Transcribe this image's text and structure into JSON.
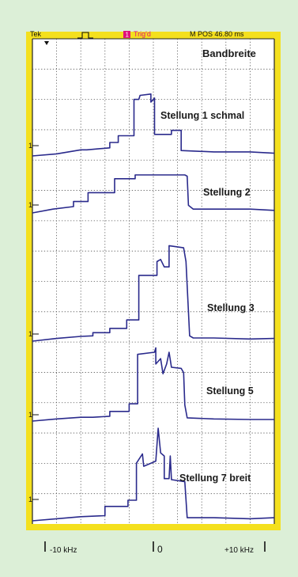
{
  "topbar": {
    "brand": "Tek",
    "trigger_indicator": "1",
    "trigger_label": "Trig'd",
    "position_readout": "M POS 46.80 ms"
  },
  "chart_data": {
    "type": "line",
    "title": "Bandbreite",
    "xlabel": "",
    "ylabel": "",
    "grid": true,
    "x_divisions": 10,
    "xlim": [
      -10,
      10
    ],
    "x_unit": "kHz",
    "x_tick_labels": [
      "-10 kHz",
      "0",
      "+10 kHz"
    ],
    "channel_marker": "1",
    "series": [
      {
        "name": "Stellung 1 schmal",
        "x": [
          -10,
          -8,
          -6,
          -5.5,
          -3.6,
          -3.6,
          -2.9,
          -2.9,
          -1.6,
          -1.6,
          -1.2,
          -1.1,
          -0.2,
          -0.2,
          0.1,
          0.1,
          1.5,
          1.5,
          2.3,
          2.3,
          5,
          8,
          10
        ],
        "y": [
          0,
          0.15,
          0.45,
          0.45,
          0.6,
          1.0,
          1.0,
          1.5,
          1.5,
          4.2,
          4.2,
          4.5,
          4.6,
          4.0,
          4.3,
          1.6,
          1.6,
          1.9,
          1.9,
          0.4,
          0.3,
          0.3,
          0.2
        ]
      },
      {
        "name": "Stellung 2",
        "x": [
          -10,
          -8.3,
          -6.6,
          -6.6,
          -5.4,
          -5.4,
          -3.2,
          -3.2,
          -1.5,
          -1.5,
          2.6,
          2.8,
          2.9,
          3.3,
          5,
          8,
          10
        ],
        "y": [
          0,
          0.3,
          0.5,
          0.9,
          0.9,
          1.6,
          1.6,
          2.7,
          2.7,
          3.0,
          3.0,
          2.9,
          0.6,
          0.3,
          0.3,
          0.3,
          0.2
        ]
      },
      {
        "name": "Stellung 3",
        "x": [
          -10,
          -8,
          -6,
          -5,
          -5,
          -3.6,
          -3.6,
          -2.2,
          -2.2,
          -1.2,
          -1.2,
          0.3,
          0.3,
          0.6,
          0.9,
          1.3,
          1.3,
          2.5,
          2.7,
          3.0,
          3.3,
          5,
          8,
          10
        ],
        "y": [
          0,
          0.25,
          0.45,
          0.5,
          0.8,
          0.8,
          1.2,
          1.2,
          2.0,
          2.0,
          6.2,
          6.2,
          7.5,
          7.7,
          7.0,
          7.0,
          9.0,
          8.8,
          7.5,
          0.5,
          0.3,
          0.3,
          0.2,
          0.25
        ]
      },
      {
        "name": "Stellung 5",
        "x": [
          -10,
          -8,
          -6,
          -5,
          -3.6,
          -3.6,
          -2,
          -2,
          -1.3,
          -1.3,
          0.1,
          0.2,
          0.2,
          0.6,
          0.8,
          1.1,
          1.3,
          1.5,
          2.3,
          2.5,
          2.6,
          2.8,
          5,
          8,
          10
        ],
        "y": [
          0,
          0.2,
          0.35,
          0.35,
          0.45,
          0.9,
          0.9,
          1.6,
          1.6,
          6.2,
          6.4,
          6.8,
          5.3,
          5.8,
          4.4,
          5.3,
          6.4,
          5.0,
          4.9,
          4.5,
          1.5,
          0.3,
          0.2,
          0.15,
          0.15
        ]
      },
      {
        "name": "Stellung 7 breit",
        "x": [
          -10,
          -8,
          -6,
          -4,
          -4,
          -2.1,
          -2.1,
          -1.4,
          -1.4,
          -0.9,
          -0.8,
          0.2,
          0.4,
          0.6,
          0.9,
          0.9,
          1.3,
          1.4,
          1.5,
          2.6,
          2.8,
          5,
          8,
          10
        ],
        "y": [
          0,
          0.2,
          0.4,
          0.5,
          1.4,
          1.4,
          2.0,
          2.0,
          5.6,
          6.5,
          5.3,
          5.8,
          9.0,
          6.6,
          6.3,
          4.1,
          4.1,
          6.3,
          4.0,
          3.8,
          0.3,
          0.3,
          0.2,
          0.3
        ]
      }
    ]
  }
}
